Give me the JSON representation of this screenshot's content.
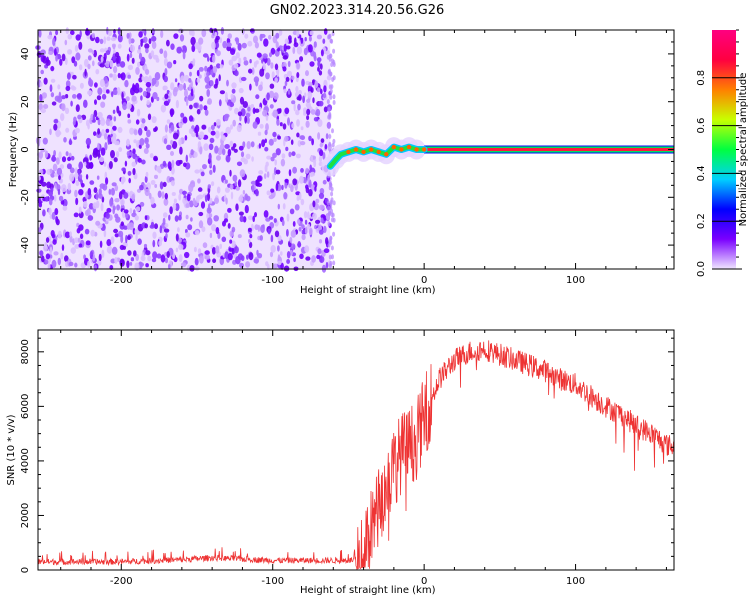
{
  "title": "GN02.2023.314.20.56.G26",
  "chart_data": [
    {
      "type": "heatmap",
      "xlabel": "Height of straight line (km)",
      "ylabel": "Frequency (Hz)",
      "xlim": [
        -255,
        165
      ],
      "ylim": [
        -50,
        50
      ],
      "x_ticks": [
        -200,
        -100,
        0,
        100
      ],
      "y_ticks": [
        -40,
        -20,
        0,
        20,
        40
      ],
      "colorbar": {
        "label": "Normalized spectral amplitude",
        "range": [
          0,
          1
        ],
        "ticks": [
          0.0,
          0.2,
          0.4,
          0.6,
          0.8
        ],
        "colormap": [
          "#f0e6ff",
          "#7a00ff",
          "#0000ff",
          "#00d0ff",
          "#00ff40",
          "#c8ff00",
          "#ff8000",
          "#ff0040",
          "#ff0080"
        ]
      },
      "noise_region_x": [
        -255,
        -62
      ],
      "signal_track": {
        "x": [
          -62,
          -58,
          -55,
          -50,
          -45,
          -40,
          -35,
          -30,
          -25,
          -20,
          -15,
          -10,
          -5,
          0,
          165
        ],
        "freq": [
          -7,
          -4,
          -2,
          -1,
          0,
          -1,
          0,
          -1,
          -2,
          1,
          0,
          1,
          0,
          0,
          0
        ]
      },
      "grid": false
    },
    {
      "type": "line",
      "xlabel": "Height of straight line (km)",
      "ylabel": "SNR (10 * v/v)",
      "xlim": [
        -255,
        165
      ],
      "ylim": [
        0,
        8800
      ],
      "x_ticks": [
        -200,
        -100,
        0,
        100
      ],
      "y_ticks": [
        0,
        2000,
        4000,
        6000,
        8000
      ],
      "series": [
        {
          "color": "#ee3333",
          "x": [
            -255,
            -200,
            -160,
            -140,
            -100,
            -50,
            -42,
            -38,
            -35,
            -30,
            -25,
            -20,
            -15,
            -10,
            -5,
            0,
            10,
            20,
            30,
            40,
            50,
            60,
            70,
            80,
            90,
            100,
            110,
            120,
            130,
            140,
            150,
            160,
            165
          ],
          "y": [
            300,
            300,
            380,
            450,
            350,
            350,
            400,
            800,
            1500,
            2300,
            3000,
            3800,
            4300,
            4500,
            4800,
            5600,
            7000,
            7700,
            8000,
            8100,
            7900,
            7700,
            7500,
            7300,
            7000,
            6800,
            6400,
            6000,
            5700,
            5300,
            5000,
            4600,
            4500
          ]
        }
      ],
      "grid": false
    }
  ]
}
